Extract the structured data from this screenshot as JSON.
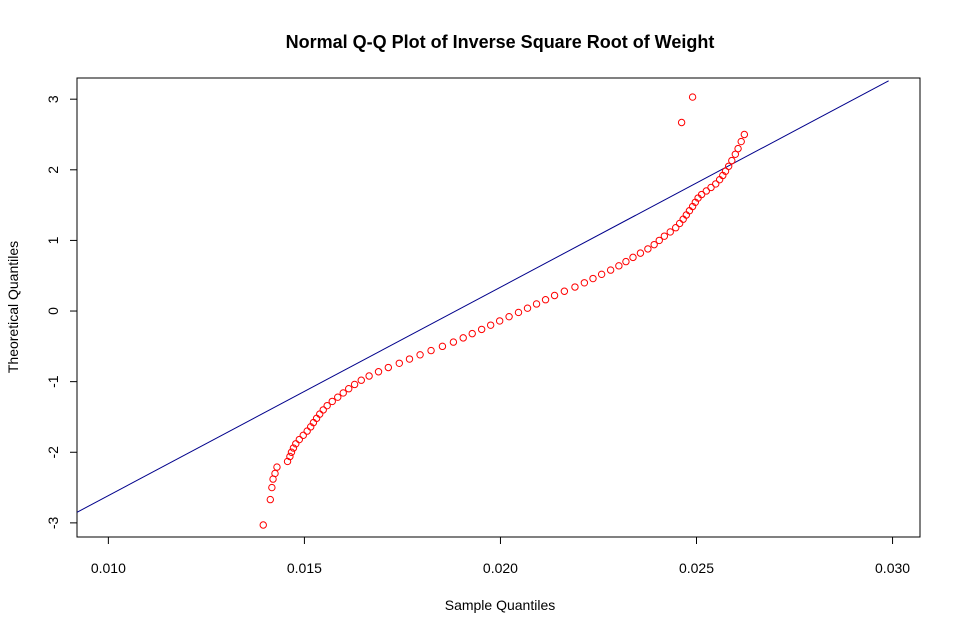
{
  "chart_data": {
    "type": "scatter",
    "title": "Normal Q-Q Plot of Inverse Square Root of Weight",
    "xlabel": "Sample Quantiles",
    "ylabel": "Theoretical Quantiles",
    "xlim": [
      0.0092,
      0.0307
    ],
    "ylim": [
      -3.2,
      3.3
    ],
    "xticks": [
      "0.010",
      "0.015",
      "0.020",
      "0.025",
      "0.030"
    ],
    "yticks": [
      "-3",
      "-2",
      "-1",
      "0",
      "1",
      "2",
      "3"
    ],
    "point_color": "#ff0000",
    "line_color": "#00008b",
    "reference_line": {
      "x": [
        0.0092,
        0.0299
      ],
      "y": [
        -2.85,
        3.26
      ]
    },
    "points": [
      [
        0.01395,
        -3.03
      ],
      [
        0.01413,
        -2.67
      ],
      [
        0.01417,
        -2.5
      ],
      [
        0.0142,
        -2.38
      ],
      [
        0.01425,
        -2.3
      ],
      [
        0.0143,
        -2.21
      ],
      [
        0.01457,
        -2.13
      ],
      [
        0.01463,
        -2.06
      ],
      [
        0.01467,
        -2.0
      ],
      [
        0.01472,
        -1.94
      ],
      [
        0.01478,
        -1.88
      ],
      [
        0.01487,
        -1.82
      ],
      [
        0.01497,
        -1.76
      ],
      [
        0.01507,
        -1.7
      ],
      [
        0.01516,
        -1.64
      ],
      [
        0.01523,
        -1.58
      ],
      [
        0.01531,
        -1.52
      ],
      [
        0.01539,
        -1.46
      ],
      [
        0.01548,
        -1.4
      ],
      [
        0.01558,
        -1.34
      ],
      [
        0.01571,
        -1.28
      ],
      [
        0.01585,
        -1.22
      ],
      [
        0.01599,
        -1.16
      ],
      [
        0.01613,
        -1.1
      ],
      [
        0.01628,
        -1.04
      ],
      [
        0.01645,
        -0.98
      ],
      [
        0.01665,
        -0.92
      ],
      [
        0.01689,
        -0.86
      ],
      [
        0.01714,
        -0.8
      ],
      [
        0.01742,
        -0.74
      ],
      [
        0.01768,
        -0.68
      ],
      [
        0.01795,
        -0.62
      ],
      [
        0.01823,
        -0.56
      ],
      [
        0.01852,
        -0.5
      ],
      [
        0.0188,
        -0.44
      ],
      [
        0.01905,
        -0.38
      ],
      [
        0.01928,
        -0.32
      ],
      [
        0.01952,
        -0.26
      ],
      [
        0.01975,
        -0.2
      ],
      [
        0.01998,
        -0.14
      ],
      [
        0.02022,
        -0.08
      ],
      [
        0.02046,
        -0.02
      ],
      [
        0.02069,
        0.04
      ],
      [
        0.02092,
        0.1
      ],
      [
        0.02115,
        0.16
      ],
      [
        0.02138,
        0.22
      ],
      [
        0.02163,
        0.28
      ],
      [
        0.0219,
        0.34
      ],
      [
        0.02214,
        0.4
      ],
      [
        0.02236,
        0.46
      ],
      [
        0.02258,
        0.52
      ],
      [
        0.02281,
        0.58
      ],
      [
        0.02302,
        0.64
      ],
      [
        0.0232,
        0.7
      ],
      [
        0.02338,
        0.76
      ],
      [
        0.02357,
        0.82
      ],
      [
        0.02376,
        0.88
      ],
      [
        0.02392,
        0.94
      ],
      [
        0.02405,
        1.0
      ],
      [
        0.02418,
        1.06
      ],
      [
        0.02433,
        1.12
      ],
      [
        0.02447,
        1.18
      ],
      [
        0.02457,
        1.24
      ],
      [
        0.02466,
        1.3
      ],
      [
        0.02474,
        1.36
      ],
      [
        0.02482,
        1.42
      ],
      [
        0.0249,
        1.48
      ],
      [
        0.02497,
        1.54
      ],
      [
        0.02504,
        1.6
      ],
      [
        0.02513,
        1.65
      ],
      [
        0.02525,
        1.7
      ],
      [
        0.02537,
        1.75
      ],
      [
        0.02549,
        1.8
      ],
      [
        0.02559,
        1.86
      ],
      [
        0.02567,
        1.92
      ],
      [
        0.02574,
        1.98
      ],
      [
        0.02582,
        2.05
      ],
      [
        0.0259,
        2.13
      ],
      [
        0.02599,
        2.22
      ],
      [
        0.02606,
        2.3
      ],
      [
        0.02614,
        2.4
      ],
      [
        0.02622,
        2.5
      ],
      [
        0.02462,
        2.67
      ],
      [
        0.0249,
        3.03
      ]
    ]
  }
}
